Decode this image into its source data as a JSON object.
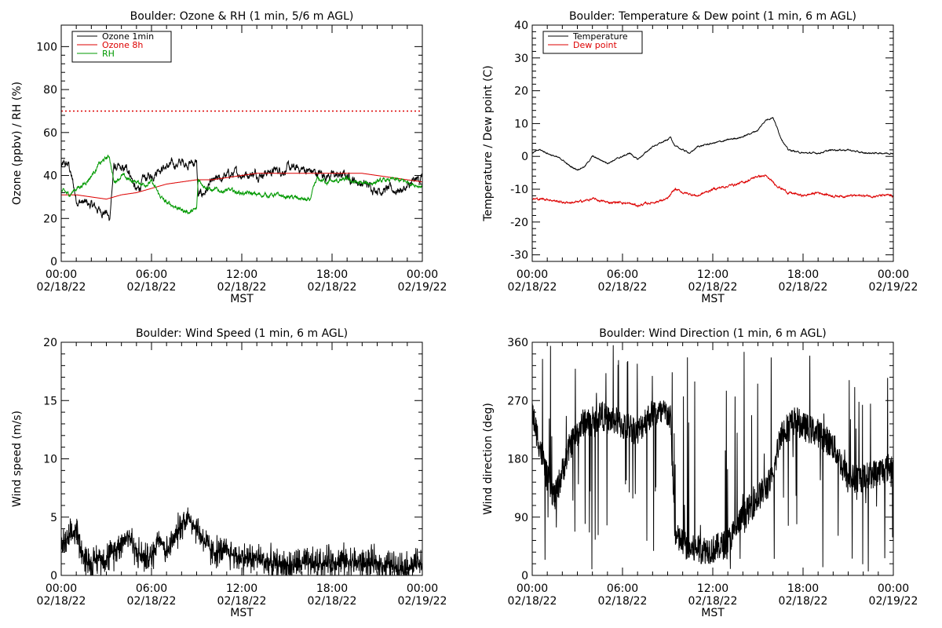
{
  "chart_data": [
    {
      "type": "line",
      "title": "Boulder: Ozone & RH (1 min, 5/6 m AGL)",
      "xlabel": "MST",
      "ylabel": "Ozone (ppbv) / RH (%)",
      "xlim": [
        0,
        24
      ],
      "ylim": [
        0,
        110
      ],
      "yticks": [
        0,
        20,
        40,
        60,
        80,
        100
      ],
      "xticks": [
        {
          "time": "00:00",
          "date": "02/18/22"
        },
        {
          "time": "06:00",
          "date": "02/18/22"
        },
        {
          "time": "12:00",
          "date": "02/18/22"
        },
        {
          "time": "18:00",
          "date": "02/18/22"
        },
        {
          "time": "00:00",
          "date": "02/19/22"
        }
      ],
      "legend": {
        "position": "top-left"
      },
      "hline": {
        "y": 70,
        "color": "#dd0000",
        "style": "dotted"
      },
      "series": [
        {
          "name": "Ozone 1min",
          "color": "#000000",
          "noise": 2.5,
          "x": [
            0,
            0.5,
            1,
            1.5,
            2,
            2.5,
            3,
            3.2,
            3.5,
            4,
            4.5,
            5,
            5.5,
            6,
            6.5,
            7,
            7.5,
            8,
            8.5,
            9,
            9.1,
            9.5,
            10,
            11,
            12,
            13,
            14,
            15,
            16,
            17,
            18,
            19,
            20,
            21,
            22,
            23,
            24
          ],
          "y": [
            44,
            45,
            29,
            27,
            26,
            24,
            23,
            19,
            44,
            42,
            43,
            32,
            38,
            40,
            44,
            44,
            45,
            46,
            46,
            46,
            30,
            32,
            36,
            40,
            41,
            41,
            42,
            43,
            43,
            41,
            40,
            40,
            36,
            34,
            33,
            34,
            40
          ]
        },
        {
          "name": "Ozone 8h",
          "color": "#dd0000",
          "noise": 0,
          "x": [
            0,
            1,
            2,
            3,
            4,
            5,
            6,
            7,
            8,
            9,
            10,
            11,
            12,
            13,
            14,
            15,
            16,
            17,
            18,
            19,
            20,
            21,
            22,
            23,
            24
          ],
          "y": [
            31,
            31,
            30,
            29,
            31,
            32,
            34,
            36,
            37,
            38,
            38,
            39,
            40,
            41,
            41,
            41,
            41,
            41,
            41,
            41,
            41,
            40,
            39,
            38,
            37
          ]
        },
        {
          "name": "RH",
          "color": "#009900",
          "noise": 1.2,
          "x": [
            0,
            0.5,
            1,
            1.5,
            2,
            2.5,
            3,
            3.2,
            3.5,
            4,
            4.5,
            5,
            5.5,
            6,
            6.5,
            7,
            7.5,
            8,
            8.5,
            9,
            9.1,
            10,
            11,
            12,
            13,
            14,
            15,
            16,
            16.5,
            17,
            18,
            19,
            20,
            21,
            22,
            23,
            24
          ],
          "y": [
            33,
            31,
            34,
            36,
            40,
            45,
            48,
            49,
            37,
            40,
            38,
            37,
            36,
            37,
            31,
            27,
            26,
            24,
            23,
            24,
            38,
            33,
            33,
            32,
            31,
            31,
            30,
            29,
            28,
            38,
            37,
            38,
            36,
            37,
            38,
            37,
            35
          ]
        }
      ]
    },
    {
      "type": "line",
      "title": "Boulder: Temperature & Dew point (1 min, 6 m AGL)",
      "xlabel": "MST",
      "ylabel": "Temperature / Dew point (C)",
      "xlim": [
        0,
        24
      ],
      "ylim": [
        -32,
        40
      ],
      "yticks": [
        -30,
        -20,
        -10,
        0,
        10,
        20,
        30,
        40
      ],
      "xticks": [
        {
          "time": "00:00",
          "date": "02/18/22"
        },
        {
          "time": "06:00",
          "date": "02/18/22"
        },
        {
          "time": "12:00",
          "date": "02/18/22"
        },
        {
          "time": "18:00",
          "date": "02/18/22"
        },
        {
          "time": "00:00",
          "date": "02/19/22"
        }
      ],
      "legend": {
        "position": "top-left"
      },
      "series": [
        {
          "name": "Temperature",
          "color": "#000000",
          "noise": 0.25,
          "x": [
            0,
            0.5,
            1,
            1.5,
            2,
            2.5,
            3,
            3.5,
            4,
            4.5,
            5,
            5.5,
            6,
            6.5,
            7,
            7.5,
            8,
            8.5,
            9,
            9.2,
            9.5,
            10,
            10.5,
            11,
            12,
            13,
            14,
            15,
            15.5,
            16,
            16.5,
            17,
            18,
            19,
            20,
            21,
            22,
            23,
            24
          ],
          "y": [
            1,
            2,
            1,
            0,
            -1,
            -3,
            -4,
            -3,
            0,
            -1,
            -2,
            -1,
            0,
            1,
            -1,
            1,
            3,
            4,
            5,
            6,
            3,
            2,
            1,
            3,
            4,
            5,
            6,
            8,
            11,
            12,
            6,
            2,
            1,
            1,
            2,
            2,
            1,
            1,
            1
          ]
        },
        {
          "name": "Dew point",
          "color": "#dd0000",
          "noise": 0.4,
          "x": [
            0,
            1,
            2,
            3,
            4,
            5,
            6,
            7,
            8,
            9,
            9.5,
            10,
            11,
            12,
            13,
            14,
            15,
            15.5,
            16,
            17,
            18,
            19,
            20,
            21,
            22,
            23,
            24
          ],
          "y": [
            -13,
            -13,
            -14,
            -14,
            -13,
            -14,
            -14,
            -15,
            -14,
            -13,
            -10,
            -11,
            -12,
            -10,
            -9,
            -8,
            -6,
            -6,
            -8,
            -11,
            -12,
            -11,
            -12,
            -12,
            -12,
            -12,
            -12
          ]
        }
      ]
    },
    {
      "type": "line",
      "title": "Boulder: Wind Speed (1 min, 6 m AGL)",
      "xlabel": "MST",
      "ylabel": "Wind speed (m/s)",
      "xlim": [
        0,
        24
      ],
      "ylim": [
        0,
        20
      ],
      "yticks": [
        0,
        5,
        10,
        15,
        20
      ],
      "xticks": [
        {
          "time": "00:00",
          "date": "02/18/22"
        },
        {
          "time": "06:00",
          "date": "02/18/22"
        },
        {
          "time": "12:00",
          "date": "02/18/22"
        },
        {
          "time": "18:00",
          "date": "02/18/22"
        },
        {
          "time": "00:00",
          "date": "02/19/22"
        }
      ],
      "series": [
        {
          "name": "",
          "color": "#000000",
          "noise": 1.8,
          "x": [
            0,
            0.5,
            1,
            1.5,
            2,
            2.5,
            3,
            3.5,
            4,
            4.5,
            5,
            5.5,
            6,
            6.5,
            7,
            7.5,
            8,
            8.5,
            9,
            10,
            11,
            12,
            13,
            14,
            15,
            16,
            17,
            18,
            19,
            20,
            21,
            22,
            23,
            24
          ],
          "y": [
            2.5,
            3,
            4,
            1.5,
            1,
            1.5,
            1.5,
            2,
            3,
            3.5,
            2,
            1.5,
            1.5,
            3.5,
            2,
            3,
            4.5,
            5,
            4,
            2,
            2,
            1.5,
            1.5,
            1,
            0.8,
            1,
            1,
            1.2,
            1.3,
            1,
            1,
            0.8,
            0.8,
            1
          ]
        }
      ]
    },
    {
      "type": "line",
      "title": "Boulder: Wind Direction (1 min, 6 m AGL)",
      "xlabel": "MST",
      "ylabel": "Wind direction (deg)",
      "xlim": [
        0,
        24
      ],
      "ylim": [
        0,
        360
      ],
      "yticks": [
        0,
        90,
        180,
        270,
        360
      ],
      "xticks": [
        {
          "time": "00:00",
          "date": "02/18/22"
        },
        {
          "time": "06:00",
          "date": "02/18/22"
        },
        {
          "time": "12:00",
          "date": "02/18/22"
        },
        {
          "time": "18:00",
          "date": "02/18/22"
        },
        {
          "time": "00:00",
          "date": "02/19/22"
        }
      ],
      "series": [
        {
          "name": "",
          "color": "#000000",
          "noise": 90,
          "x": [
            0,
            0.5,
            1,
            1.5,
            2,
            2.5,
            3,
            3.5,
            4,
            4.5,
            5,
            5.5,
            6,
            6.5,
            7,
            7.5,
            8,
            8.5,
            9,
            9.2,
            9.5,
            10,
            10.5,
            11,
            12,
            13,
            14,
            15,
            16,
            16.5,
            17,
            17.5,
            18,
            19,
            20,
            21,
            22,
            23,
            24
          ],
          "y": [
            250,
            200,
            150,
            120,
            160,
            200,
            220,
            240,
            230,
            250,
            240,
            240,
            230,
            230,
            220,
            240,
            250,
            250,
            250,
            240,
            60,
            50,
            40,
            40,
            40,
            50,
            90,
            120,
            150,
            220,
            230,
            240,
            230,
            220,
            200,
            150,
            150,
            160,
            170
          ]
        }
      ]
    }
  ]
}
